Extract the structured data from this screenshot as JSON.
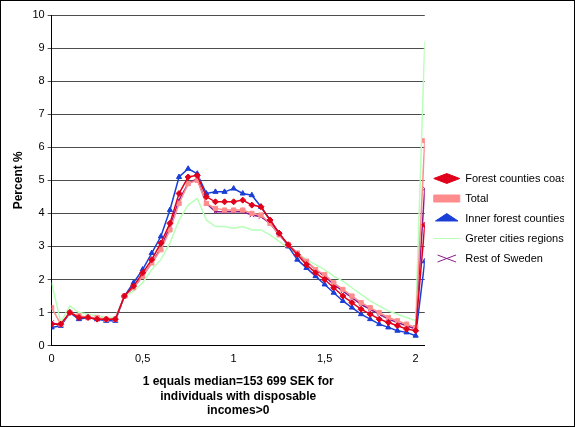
{
  "chart_data": {
    "type": "line",
    "xlabel": [
      "1 equals median=153 699 SEK for",
      "individuals with disposable",
      "incomes>0"
    ],
    "ylabel": "Percent %",
    "x": [
      0,
      0.05,
      0.1,
      0.15,
      0.2,
      0.25,
      0.3,
      0.35,
      0.4,
      0.45,
      0.5,
      0.55,
      0.6,
      0.65,
      0.7,
      0.75,
      0.8,
      0.85,
      0.9,
      0.95,
      1.0,
      1.05,
      1.1,
      1.15,
      1.2,
      1.25,
      1.3,
      1.35,
      1.4,
      1.45,
      1.5,
      1.55,
      1.6,
      1.65,
      1.7,
      1.75,
      1.8,
      1.85,
      1.9,
      1.95,
      2.0,
      2.05
    ],
    "series": [
      {
        "name": "Forest counties coast",
        "color": "#e0001b",
        "marker": "diamond",
        "values": [
          0.65,
          0.65,
          1.0,
          0.85,
          0.85,
          0.8,
          0.8,
          0.8,
          1.5,
          1.8,
          2.2,
          2.6,
          3.1,
          3.7,
          4.6,
          5.1,
          5.15,
          4.5,
          4.35,
          4.35,
          4.35,
          4.4,
          4.25,
          4.2,
          3.8,
          3.4,
          3.05,
          2.75,
          2.45,
          2.2,
          2.0,
          1.75,
          1.5,
          1.3,
          1.1,
          0.95,
          0.8,
          0.7,
          0.6,
          0.5,
          0.45,
          3.65
        ]
      },
      {
        "name": "Total",
        "color": "#ff8c8c",
        "marker": "square",
        "values": [
          1.15,
          0.65,
          1.0,
          0.9,
          0.85,
          0.85,
          0.8,
          0.8,
          1.5,
          1.75,
          2.1,
          2.5,
          2.9,
          3.5,
          4.3,
          4.9,
          5.0,
          4.3,
          4.15,
          4.1,
          4.1,
          4.1,
          4.0,
          3.95,
          3.7,
          3.35,
          3.05,
          2.8,
          2.55,
          2.3,
          2.15,
          1.9,
          1.7,
          1.5,
          1.3,
          1.15,
          1.0,
          0.85,
          0.75,
          0.65,
          0.55,
          6.2
        ]
      },
      {
        "name": "Inner forest counties",
        "color": "#1a3fd6",
        "marker": "triangle",
        "values": [
          0.55,
          0.6,
          1.0,
          0.8,
          0.85,
          0.8,
          0.75,
          0.75,
          1.5,
          1.9,
          2.3,
          2.8,
          3.3,
          4.1,
          5.1,
          5.35,
          5.2,
          4.6,
          4.65,
          4.65,
          4.75,
          4.6,
          4.55,
          4.2,
          3.8,
          3.4,
          3.0,
          2.6,
          2.35,
          2.1,
          1.85,
          1.6,
          1.35,
          1.15,
          0.95,
          0.8,
          0.65,
          0.55,
          0.45,
          0.4,
          0.3,
          2.55
        ]
      },
      {
        "name": "Greter cities regions",
        "color": "#b8ffb8",
        "marker": "none",
        "values": [
          1.9,
          0.7,
          1.2,
          1.0,
          0.95,
          0.9,
          0.85,
          0.85,
          1.5,
          1.65,
          1.9,
          2.3,
          2.6,
          3.1,
          3.8,
          4.25,
          4.45,
          3.8,
          3.6,
          3.6,
          3.55,
          3.6,
          3.5,
          3.5,
          3.35,
          3.15,
          2.95,
          2.8,
          2.6,
          2.45,
          2.3,
          2.1,
          1.95,
          1.75,
          1.55,
          1.35,
          1.2,
          1.05,
          0.95,
          0.85,
          0.75,
          9.2
        ]
      },
      {
        "name": "Rest of Sweden",
        "color": "#8b1a8b",
        "marker": "x",
        "values": [
          0.7,
          0.6,
          1.0,
          0.85,
          0.85,
          0.8,
          0.8,
          0.8,
          1.5,
          1.75,
          2.1,
          2.5,
          2.95,
          3.6,
          4.4,
          4.9,
          5.05,
          4.3,
          4.05,
          4.05,
          4.05,
          4.05,
          3.95,
          3.9,
          3.7,
          3.35,
          3.05,
          2.8,
          2.55,
          2.3,
          2.1,
          1.85,
          1.65,
          1.45,
          1.25,
          1.1,
          0.95,
          0.8,
          0.7,
          0.6,
          0.5,
          4.75
        ]
      }
    ],
    "xlim": [
      0,
      2.05
    ],
    "xticks": [
      0,
      {
        "value": 0.5,
        "label": "0,5"
      },
      1,
      {
        "value": 1.5,
        "label": "1,5"
      },
      2
    ],
    "ylim": [
      0,
      10
    ],
    "yticks": [
      0,
      1,
      2,
      3,
      4,
      5,
      6,
      7,
      8,
      9,
      10
    ],
    "grid": true,
    "legend": "right"
  }
}
